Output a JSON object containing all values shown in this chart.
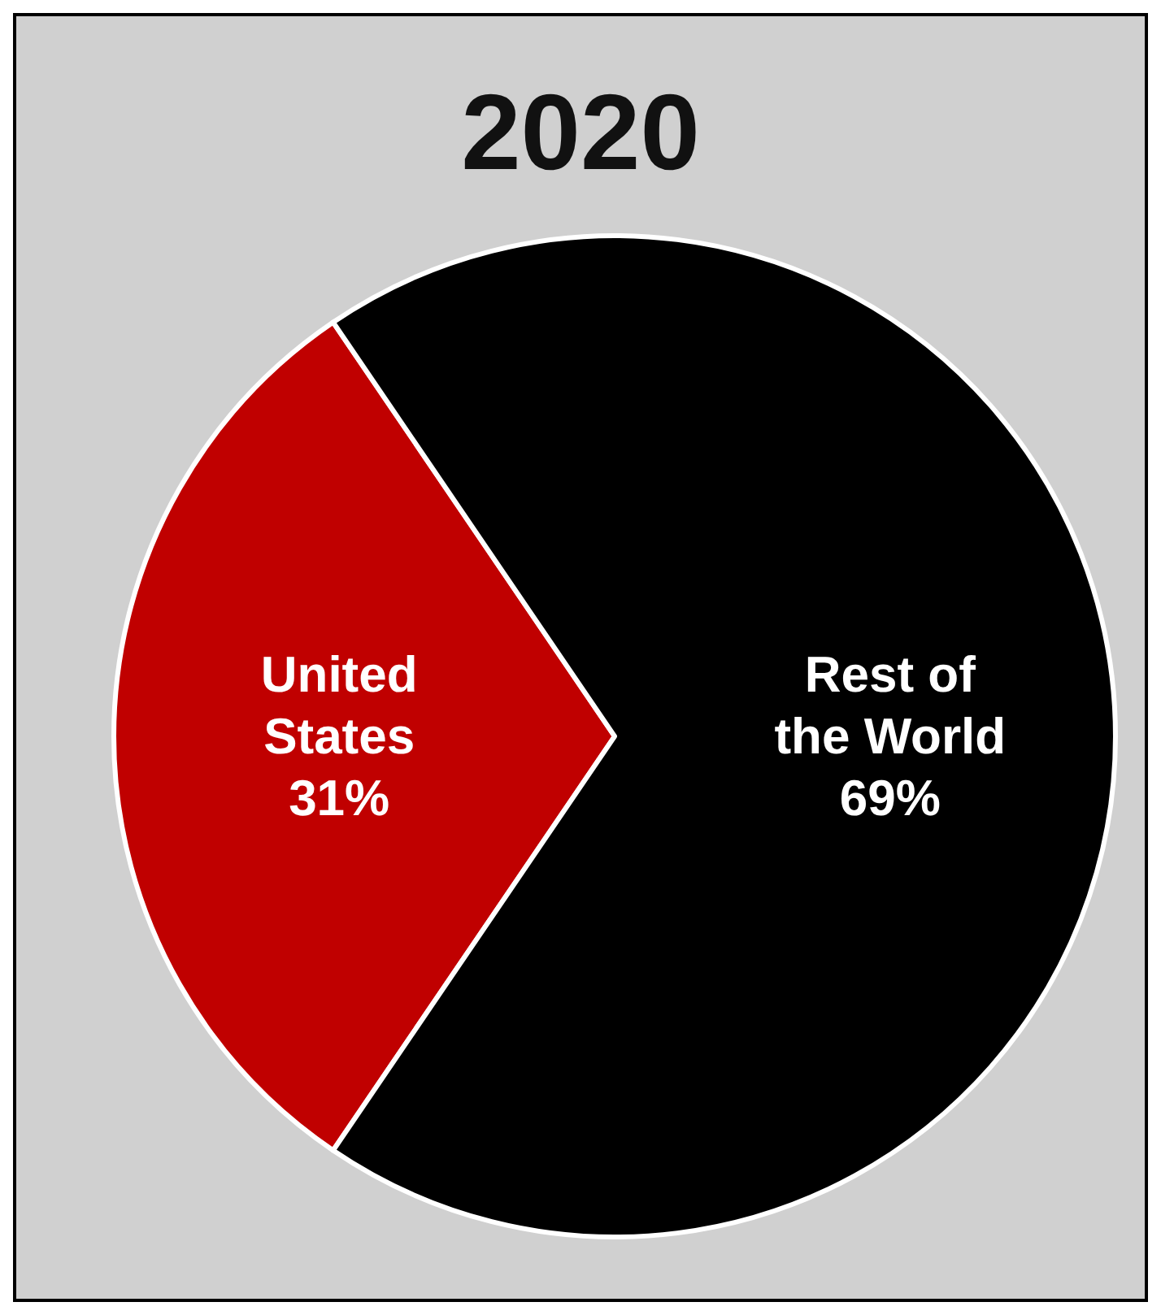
{
  "chart_data": {
    "type": "pie",
    "title": "2020",
    "categories": [
      "United States",
      "Rest of the World"
    ],
    "values": [
      31,
      69
    ],
    "colors": [
      "#c00000",
      "#000000"
    ],
    "value_labels": [
      "31%",
      "69%"
    ]
  }
}
